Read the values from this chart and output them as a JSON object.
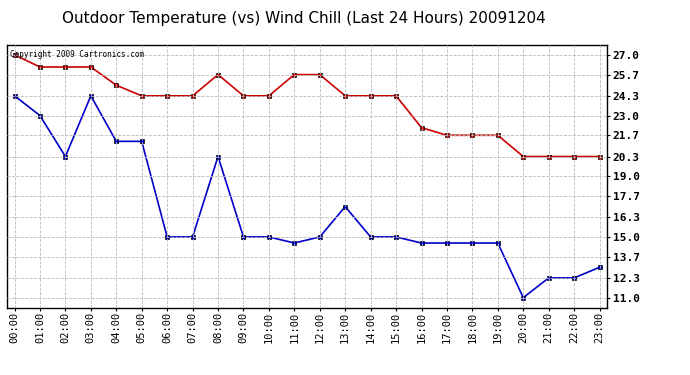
{
  "title": "Outdoor Temperature (vs) Wind Chill (Last 24 Hours) 20091204",
  "copyright_text": "Copyright 2009 Cartronics.com",
  "hours": [
    "00:00",
    "01:00",
    "02:00",
    "03:00",
    "04:00",
    "05:00",
    "06:00",
    "07:00",
    "08:00",
    "09:00",
    "10:00",
    "11:00",
    "12:00",
    "13:00",
    "14:00",
    "15:00",
    "16:00",
    "17:00",
    "18:00",
    "19:00",
    "20:00",
    "21:00",
    "22:00",
    "23:00"
  ],
  "temp": [
    27.0,
    26.2,
    26.2,
    26.2,
    25.0,
    24.3,
    24.3,
    24.3,
    25.7,
    24.3,
    24.3,
    25.7,
    25.7,
    24.3,
    24.3,
    24.3,
    22.2,
    21.7,
    21.7,
    21.7,
    20.3,
    20.3,
    20.3,
    20.3
  ],
  "windchill": [
    24.3,
    23.0,
    20.3,
    24.3,
    21.3,
    21.3,
    15.0,
    15.0,
    20.3,
    15.0,
    15.0,
    14.6,
    15.0,
    17.0,
    15.0,
    15.0,
    14.6,
    14.6,
    14.6,
    14.6,
    11.0,
    12.3,
    12.3,
    13.0
  ],
  "temp_color": "#cc0000",
  "windchill_color": "#0000cc",
  "yticks": [
    11.0,
    12.3,
    13.7,
    15.0,
    16.3,
    17.7,
    19.0,
    20.3,
    21.7,
    23.0,
    24.3,
    25.7,
    27.0
  ],
  "ymin": 10.35,
  "ymax": 27.65,
  "background_color": "#ffffff",
  "grid_color": "#bbbbbb",
  "title_fontsize": 11,
  "tick_fontsize": 7.5,
  "marker": "s",
  "marker_size": 3,
  "line_width": 1.2
}
